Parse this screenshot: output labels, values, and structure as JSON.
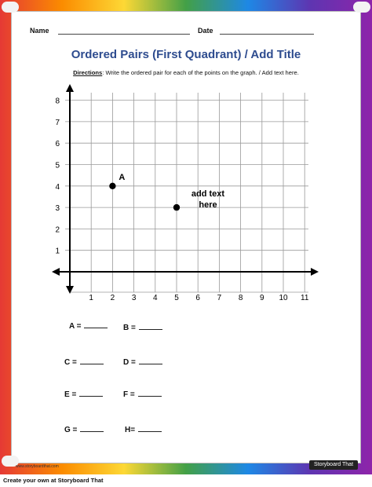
{
  "header": {
    "name_label": "Name",
    "date_label": "Date"
  },
  "title": "Ordered Pairs (First Quadrant) / Add Title",
  "directions": {
    "label": "Directions",
    "text": ": Write the ordered pair for each of the points on the graph. / Add text here."
  },
  "chart_data": {
    "type": "scatter",
    "x_ticks": [
      "1",
      "2",
      "3",
      "4",
      "5",
      "6",
      "7",
      "8",
      "9",
      "10",
      "11"
    ],
    "y_ticks": [
      "1",
      "2",
      "3",
      "4",
      "5",
      "6",
      "7",
      "8"
    ],
    "xlim": [
      0,
      11
    ],
    "ylim": [
      0,
      8
    ],
    "grid": true,
    "points": [
      {
        "label": "A",
        "x": 2,
        "y": 4
      },
      {
        "label": "",
        "x": 5,
        "y": 3
      }
    ],
    "annotation": {
      "line1": "add text",
      "line2": "here"
    }
  },
  "answers": [
    {
      "label": "A ="
    },
    {
      "label": "B ="
    },
    {
      "label": "C ="
    },
    {
      "label": "D ="
    },
    {
      "label": "E ="
    },
    {
      "label": "F ="
    },
    {
      "label": "G ="
    },
    {
      "label": "H="
    }
  ],
  "watermark": {
    "logo_text": "Storyboard That",
    "small_text": "www.storyboardthat.com"
  },
  "footer": {
    "text": "Create your own at Storyboard That"
  }
}
